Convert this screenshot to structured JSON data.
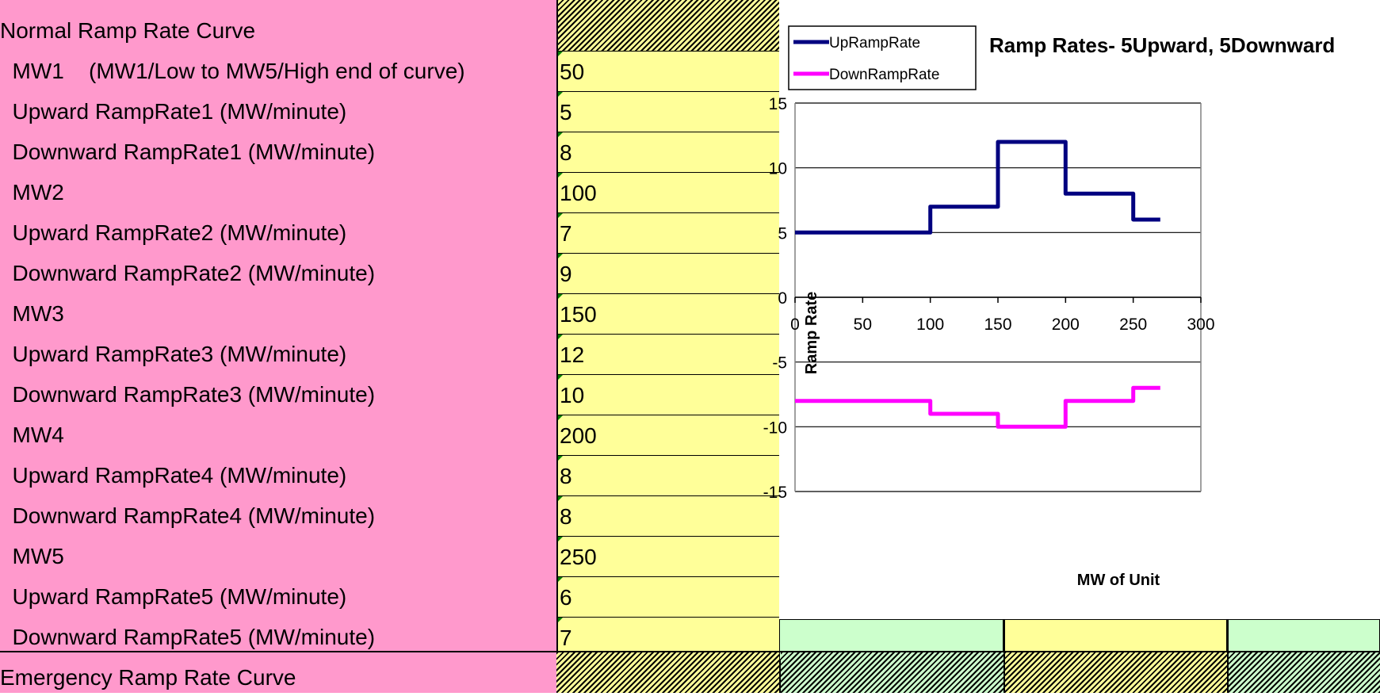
{
  "sheet": {
    "header_label": "Normal Ramp Rate Curve",
    "footer_label": "Emergency Ramp Rate Curve",
    "rows": [
      {
        "label": "  MW1    (MW1/Low to MW5/High end of curve)",
        "value": "50"
      },
      {
        "label": "  Upward RampRate1 (MW/minute)",
        "value": "5"
      },
      {
        "label": "  Downward RampRate1 (MW/minute)",
        "value": "8"
      },
      {
        "label": "  MW2",
        "value": "100"
      },
      {
        "label": "  Upward RampRate2 (MW/minute)",
        "value": "7"
      },
      {
        "label": "  Downward RampRate2 (MW/minute)",
        "value": "9"
      },
      {
        "label": "  MW3",
        "value": "150"
      },
      {
        "label": "  Upward RampRate3 (MW/minute)",
        "value": "12"
      },
      {
        "label": "  Downward RampRate3 (MW/minute)",
        "value": "10"
      },
      {
        "label": "  MW4",
        "value": "200"
      },
      {
        "label": "  Upward RampRate4 (MW/minute)",
        "value": "8"
      },
      {
        "label": "  Downward RampRate4 (MW/minute)",
        "value": "8"
      },
      {
        "label": "  MW5",
        "value": "250"
      },
      {
        "label": "  Upward RampRate5 (MW/minute)",
        "value": "6"
      },
      {
        "label": "  Downward RampRate5 (MW/minute)",
        "value": "7"
      }
    ]
  },
  "colors": {
    "label_bg": "#ff99cc",
    "value_bg": "#ffff99",
    "green_bg": "#ccffcc",
    "up_series": "#000080",
    "down_series": "#ff00ff"
  },
  "chart_data": {
    "type": "line",
    "title": "Ramp Rates- 5Upward, 5Downward",
    "xlabel": "MW of Unit",
    "ylabel": "Ramp Rate",
    "xlim": [
      0,
      300
    ],
    "ylim": [
      -15,
      15
    ],
    "x_ticks": [
      "0",
      "50",
      "100",
      "150",
      "200",
      "250",
      "300"
    ],
    "y_ticks": [
      "15",
      "10",
      "5",
      "0",
      "-5",
      "-10",
      "-15"
    ],
    "legend_position": "top-left",
    "grid": "horizontal",
    "series": [
      {
        "name": "UpRampRate",
        "color": "#000080",
        "points": [
          [
            0,
            5
          ],
          [
            100,
            5
          ],
          [
            100,
            7
          ],
          [
            150,
            7
          ],
          [
            150,
            12
          ],
          [
            200,
            12
          ],
          [
            200,
            8
          ],
          [
            250,
            8
          ],
          [
            250,
            6
          ],
          [
            270,
            6
          ]
        ]
      },
      {
        "name": "DownRampRate",
        "color": "#ff00ff",
        "points": [
          [
            0,
            -8
          ],
          [
            100,
            -8
          ],
          [
            100,
            -9
          ],
          [
            150,
            -9
          ],
          [
            150,
            -10
          ],
          [
            200,
            -10
          ],
          [
            200,
            -8
          ],
          [
            250,
            -8
          ],
          [
            250,
            -7
          ],
          [
            270,
            -7
          ]
        ]
      }
    ]
  }
}
